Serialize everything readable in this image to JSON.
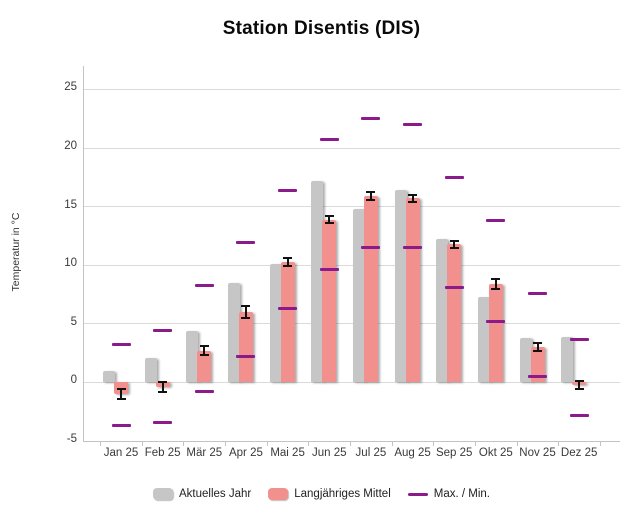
{
  "title": "Station Disentis (DIS)",
  "y_axis": {
    "label": "Temperatur in °C",
    "ticks": [
      25,
      20,
      15,
      10,
      5,
      0,
      -5
    ]
  },
  "legend": [
    {
      "label": "Aktuelles Jahr",
      "type": "bar"
    },
    {
      "label": "Langjähriges Mittel",
      "type": "bar"
    },
    {
      "label": "Max. / Min.",
      "type": "line"
    }
  ],
  "colors": {
    "bar_current": "#c6c6c6",
    "bar_mean": "#f2908e",
    "maxmin": "#8b1a8b",
    "grid": "#dadada",
    "axis": "#c3c3c3",
    "error_bar": "#111111"
  },
  "chart_data": {
    "type": "bar",
    "title": "Station Disentis (DIS)",
    "xlabel": "",
    "ylabel": "Temperatur in °C",
    "ylim": [
      -5,
      27
    ],
    "grid": "horizontal",
    "legend_position": "bottom",
    "categories": [
      "Jan 25",
      "Feb 25",
      "Mär 25",
      "Apr 25",
      "Mai 25",
      "Jun 25",
      "Jul 25",
      "Aug 25",
      "Sep 25",
      "Okt 25",
      "Nov 25",
      "Dez 25"
    ],
    "series": [
      {
        "name": "Aktuelles Jahr",
        "values": [
          1.0,
          2.1,
          4.4,
          8.5,
          10.1,
          17.2,
          14.8,
          16.4,
          12.2,
          7.3,
          3.8,
          3.9
        ]
      },
      {
        "name": "Langjähriges Mittel",
        "values": [
          -1.0,
          -0.4,
          2.7,
          6.0,
          10.3,
          13.9,
          15.9,
          15.7,
          11.8,
          8.4,
          3.0,
          -0.2
        ],
        "error": [
          0.4,
          0.45,
          0.4,
          0.5,
          0.35,
          0.3,
          0.35,
          0.3,
          0.3,
          0.45,
          0.35,
          0.35
        ]
      },
      {
        "name": "Max.",
        "values": [
          3.2,
          4.4,
          8.3,
          11.9,
          16.4,
          20.7,
          22.5,
          22.0,
          17.5,
          13.8,
          7.6,
          3.7
        ]
      },
      {
        "name": "Min.",
        "values": [
          -3.7,
          -3.4,
          -0.8,
          2.2,
          6.3,
          9.6,
          11.5,
          11.5,
          8.1,
          5.2,
          0.5,
          -2.8
        ]
      }
    ]
  }
}
